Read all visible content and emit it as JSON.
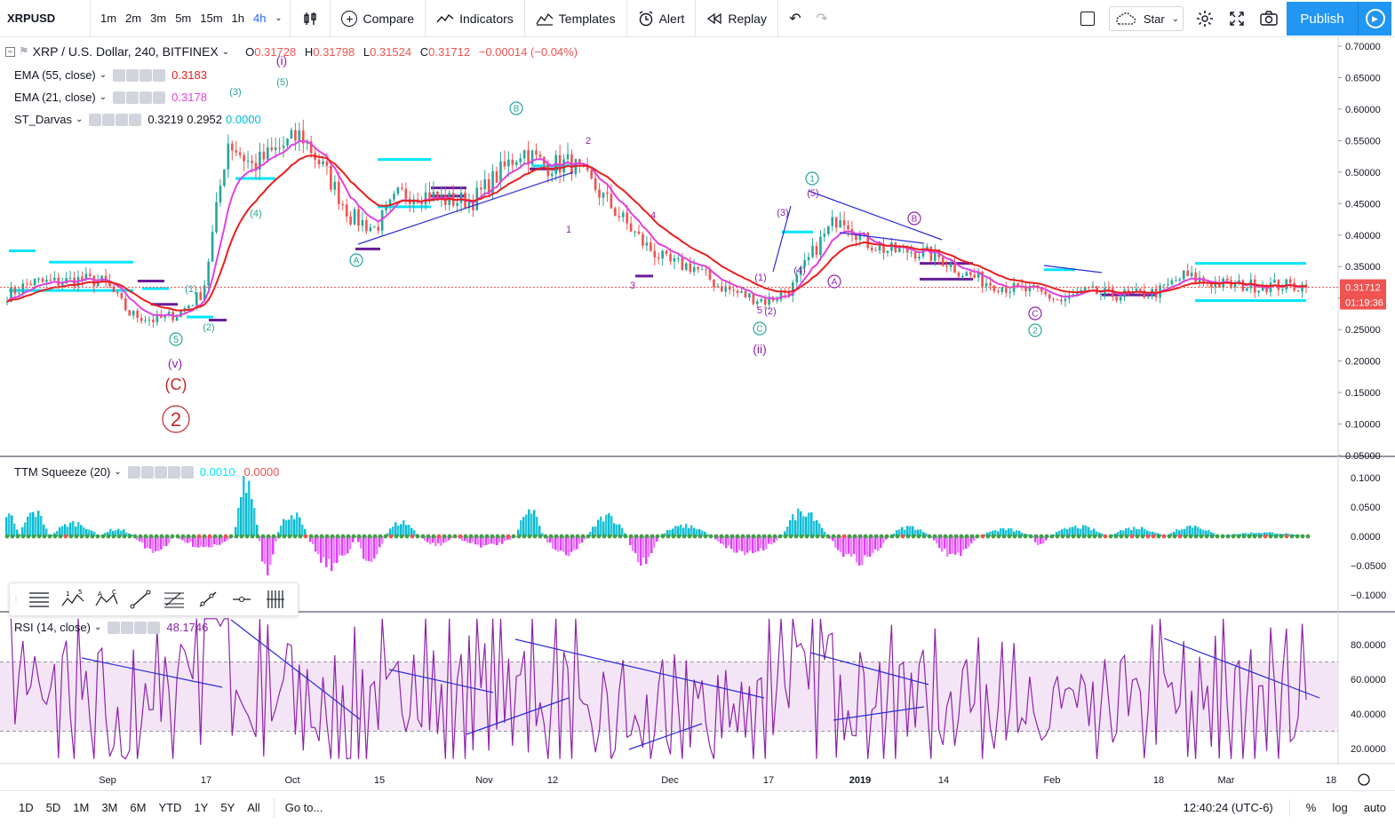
{
  "toolbar": {
    "symbol": "XRPUSD",
    "intervals": [
      "1m",
      "2m",
      "3m",
      "5m",
      "15m",
      "1h",
      "4h"
    ],
    "active_interval": "4h",
    "compare": "Compare",
    "indicators": "Indicators",
    "templates": "Templates",
    "alert": "Alert",
    "replay": "Replay",
    "star": "Star",
    "publish": "Publish"
  },
  "legend": {
    "title": "XRP / U.S. Dollar, 240, BITFINEX",
    "o_label": "O",
    "o": "0.31728",
    "h_label": "H",
    "h": "0.31798",
    "l_label": "L",
    "l": "0.31524",
    "c_label": "C",
    "c": "0.31712",
    "change": "−0.00014 (−0.04%)",
    "ema55": "EMA (55, close)",
    "ema55_val": "0.3183",
    "ema21": "EMA (21, close)",
    "ema21_val": "0.3178",
    "darvas": "ST_Darvas",
    "darvas_v1": "0.3219",
    "darvas_v2": "0.2952",
    "darvas_v3": "0.0000",
    "ttm": "TTM Squeeze (20)",
    "ttm_v1": "0.0010",
    "ttm_v2": "0.0000",
    "rsi": "RSI (14, close)",
    "rsi_val": "48.1746"
  },
  "colors": {
    "ema55": "#e91e1e",
    "ema21": "#e040e0",
    "darvas": "#00e5ff",
    "darvas_low": "#6a1b9a",
    "up": "#26a69a",
    "down": "#ef5350",
    "wave_main": "#8e24aa",
    "wave_teal": "#26a69a",
    "wave_red": "#c62828",
    "trendline": "#2b2bd9",
    "rsi": "#8e24aa",
    "rsi_band": "#f3e5f5",
    "price_tag": "#ef5350"
  },
  "price_axis": {
    "ticks": [
      "0.70000",
      "0.65000",
      "0.60000",
      "0.55000",
      "0.50000",
      "0.45000",
      "0.40000",
      "0.35000",
      "0.30000",
      "0.25000",
      "0.20000",
      "0.15000",
      "0.10000",
      "0.05000"
    ],
    "last": "0.31712",
    "countdown": "01:19:36"
  },
  "ttm_axis": {
    "ticks": [
      "0.1000",
      "0.0500",
      "0.0000",
      "−0.0500",
      "−0.1000"
    ]
  },
  "rsi_axis": {
    "ticks": [
      "80.0000",
      "60.0000",
      "40.0000",
      "20.0000"
    ]
  },
  "time_axis": {
    "ticks": [
      "Sep",
      "17",
      "Oct",
      "15",
      "Nov",
      "12",
      "Dec",
      "17",
      "2019",
      "14",
      "Feb",
      "18",
      "Mar",
      "18"
    ]
  },
  "waves": {
    "i": "(i)",
    "ii": "(ii)",
    "v": "(v)",
    "C": "(C)",
    "big2": "2",
    "circ1": "1",
    "circ2": "2",
    "circ5": "5",
    "circA": "A",
    "circB": "B",
    "circC": "C",
    "p1": "(1)",
    "p2": "(2)",
    "p3": "(3)",
    "p4": "(4)",
    "p5": "(5)",
    "n1": "1",
    "n2": "2",
    "n3": "3",
    "n4": "4",
    "n5": "5"
  },
  "range_buttons": [
    "1D",
    "5D",
    "1M",
    "3M",
    "6M",
    "YTD",
    "1Y",
    "5Y",
    "All"
  ],
  "goto": "Go to...",
  "clock": "12:40:24 (UTC-6)",
  "scale_options": [
    "%",
    "log",
    "auto"
  ],
  "chart_data": {
    "type": "candlestick",
    "title": "XRP / U.S. Dollar, 240, BITFINEX",
    "x_ticks": [
      "Sep",
      "17",
      "Oct",
      "15",
      "Nov",
      "12",
      "Dec",
      "17",
      "2019",
      "14",
      "Feb",
      "18",
      "Mar",
      "18"
    ],
    "ylim": [
      0.05,
      0.7
    ],
    "price_path": [
      [
        0.3,
        0.31
      ],
      [
        0.33,
        0.32
      ],
      [
        0.32,
        0.33
      ],
      [
        0.33,
        0.33
      ],
      [
        0.33,
        0.32
      ],
      [
        0.28,
        0.27
      ],
      [
        0.26,
        0.27
      ],
      [
        0.27,
        0.28
      ],
      [
        0.28,
        0.34
      ],
      [
        0.5,
        0.6
      ],
      [
        0.55,
        0.47
      ],
      [
        0.5,
        0.57
      ],
      [
        0.58,
        0.54
      ],
      [
        0.52,
        0.48
      ],
      [
        0.46,
        0.4
      ],
      [
        0.39,
        0.43
      ],
      [
        0.46,
        0.47
      ],
      [
        0.46,
        0.47
      ],
      [
        0.46,
        0.45
      ],
      [
        0.45,
        0.46
      ],
      [
        0.47,
        0.52
      ],
      [
        0.55,
        0.52
      ],
      [
        0.52,
        0.5
      ],
      [
        0.5,
        0.53
      ],
      [
        0.5,
        0.45
      ],
      [
        0.45,
        0.41
      ],
      [
        0.4,
        0.37
      ],
      [
        0.36,
        0.35
      ],
      [
        0.36,
        0.34
      ],
      [
        0.33,
        0.31
      ],
      [
        0.31,
        0.3
      ],
      [
        0.3,
        0.29
      ],
      [
        0.3,
        0.33
      ],
      [
        0.36,
        0.4
      ],
      [
        0.42,
        0.45
      ],
      [
        0.4,
        0.38
      ],
      [
        0.38,
        0.37
      ],
      [
        0.38,
        0.37
      ],
      [
        0.37,
        0.36
      ],
      [
        0.35,
        0.33
      ],
      [
        0.33,
        0.32
      ],
      [
        0.32,
        0.31
      ],
      [
        0.31,
        0.31
      ],
      [
        0.3,
        0.29
      ],
      [
        0.31,
        0.31
      ],
      [
        0.31,
        0.3
      ],
      [
        0.3,
        0.31
      ],
      [
        0.31,
        0.31
      ],
      [
        0.34,
        0.33
      ],
      [
        0.33,
        0.32
      ],
      [
        0.32,
        0.32
      ],
      [
        0.32,
        0.32
      ],
      [
        0.32,
        0.32
      ],
      [
        0.32,
        0.317
      ]
    ],
    "ttm_range": [
      -0.12,
      0.12
    ],
    "rsi_range": [
      10,
      100
    ],
    "rsi_band": [
      30,
      70
    ],
    "rsi_last": 48.1746
  }
}
